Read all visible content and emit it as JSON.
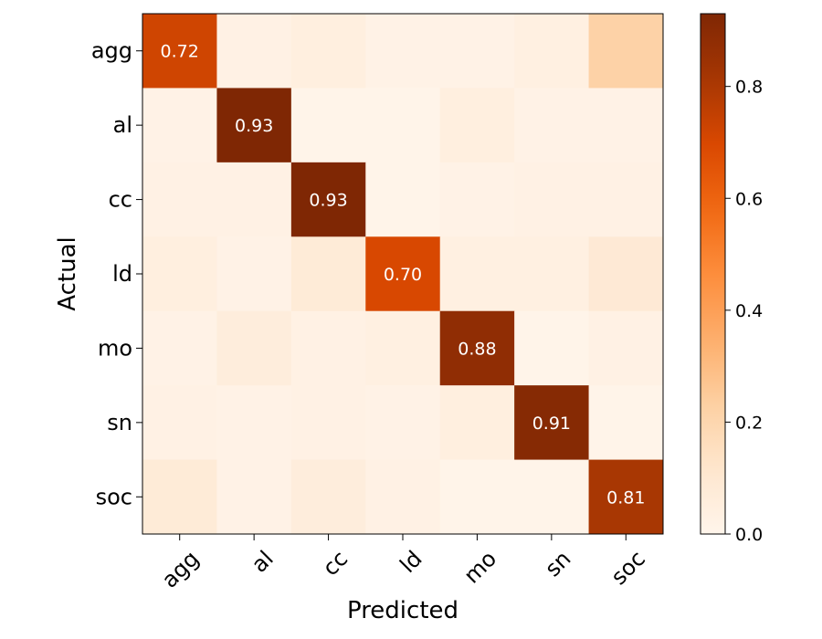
{
  "chart_data": {
    "type": "heatmap",
    "title": "",
    "xlabel": "Predicted",
    "ylabel": "Actual",
    "x_categories": [
      "agg",
      "al",
      "cc",
      "ld",
      "mo",
      "sn",
      "soc"
    ],
    "y_categories": [
      "agg",
      "al",
      "cc",
      "ld",
      "mo",
      "sn",
      "soc"
    ],
    "values": [
      [
        0.72,
        0.03,
        0.05,
        0.02,
        0.02,
        0.04,
        0.22
      ],
      [
        0.02,
        0.93,
        0.01,
        0.01,
        0.05,
        0.02,
        0.02
      ],
      [
        0.03,
        0.03,
        0.93,
        0.01,
        0.02,
        0.03,
        0.03
      ],
      [
        0.05,
        0.02,
        0.08,
        0.7,
        0.04,
        0.04,
        0.09
      ],
      [
        0.02,
        0.06,
        0.03,
        0.04,
        0.88,
        0.01,
        0.03
      ],
      [
        0.03,
        0.02,
        0.03,
        0.02,
        0.05,
        0.91,
        0.01
      ],
      [
        0.08,
        0.02,
        0.06,
        0.03,
        0.01,
        0.01,
        0.81
      ]
    ],
    "cell_labels": [
      {
        "row": 0,
        "col": 0,
        "text": "0.72"
      },
      {
        "row": 1,
        "col": 1,
        "text": "0.93"
      },
      {
        "row": 2,
        "col": 2,
        "text": "0.93"
      },
      {
        "row": 3,
        "col": 3,
        "text": "0.70"
      },
      {
        "row": 4,
        "col": 4,
        "text": "0.88"
      },
      {
        "row": 5,
        "col": 5,
        "text": "0.91"
      },
      {
        "row": 6,
        "col": 6,
        "text": "0.81"
      }
    ],
    "colormap": "Oranges",
    "vmin": 0.0,
    "vmax": 0.93,
    "colorbar_ticks": [
      {
        "value": 0.0,
        "label": "0.0"
      },
      {
        "value": 0.2,
        "label": "0.2"
      },
      {
        "value": 0.4,
        "label": "0.4"
      },
      {
        "value": 0.6,
        "label": "0.6"
      },
      {
        "value": 0.8,
        "label": "0.8"
      }
    ]
  }
}
